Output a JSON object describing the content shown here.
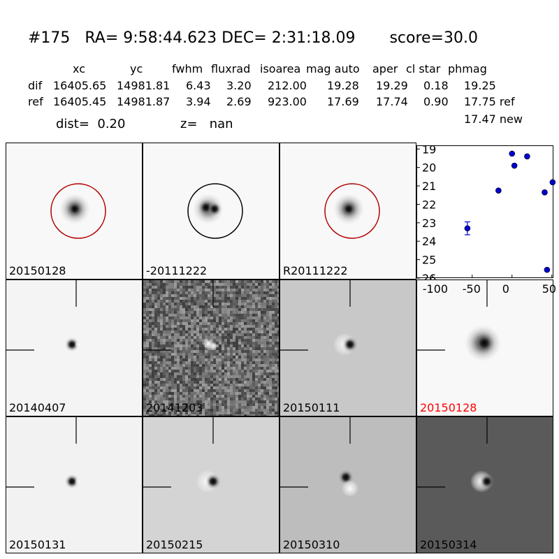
{
  "header": {
    "title": "#175   RA= 9:58:44.623 DEC= 2:31:18.09       score=30.0",
    "columns": [
      "xc",
      "yc",
      "fwhm",
      "fluxrad",
      "isoarea",
      "mag auto",
      "aper",
      "cl star",
      "phmag"
    ],
    "rows": [
      {
        "name": "dif",
        "values": [
          "16405.65",
          "14981.81",
          "6.43",
          "3.20",
          "212.00",
          "19.28",
          "19.29",
          "0.18",
          "19.25"
        ]
      },
      {
        "name": "ref",
        "values": [
          "16405.45",
          "14981.87",
          "3.94",
          "2.69",
          "923.00",
          "17.69",
          "17.74",
          "0.90",
          "17.75 ref"
        ]
      }
    ],
    "phmag_new": "17.47 new",
    "dist": "dist=  0.20",
    "z": "z=   nan"
  },
  "panels": [
    {
      "label": "20150128",
      "bg": "#f8f8f8",
      "circle": "#b00000",
      "blob": "normal"
    },
    {
      "label": "-20111222",
      "bg": "#f8f8f8",
      "circle": "#000000",
      "blob": "double"
    },
    {
      "label": "R20111222",
      "bg": "#f8f8f8",
      "circle": "#b00000",
      "blob": "normal"
    },
    {
      "label": "20140407",
      "bg": "#f4f4f4",
      "blob": "small"
    },
    {
      "label": "20141203",
      "bg": "#6a6a6a",
      "blob": "noise"
    },
    {
      "label": "20150111",
      "bg": "#c8c8c8",
      "blob": "dipole"
    },
    {
      "label": "20150128",
      "bg": "#f8f8f8",
      "blob": "large",
      "label_color": "#ff0000"
    },
    {
      "label": "20150131",
      "bg": "#f2f2f2",
      "blob": "small"
    },
    {
      "label": "20150215",
      "bg": "#d4d4d4",
      "blob": "dipole"
    },
    {
      "label": "20150310",
      "bg": "#bdbdbd",
      "blob": "dipole2"
    },
    {
      "label": "20150314",
      "bg": "#5a5a5a",
      "blob": "dipole"
    }
  ],
  "chart_data": {
    "type": "scatter",
    "x_ticks": [
      -100,
      -50,
      0,
      50
    ],
    "y_ticks": [
      19,
      20,
      21,
      22,
      23,
      24,
      25,
      26
    ],
    "xlim": [
      -120,
      52
    ],
    "ylim": [
      26,
      18.8
    ],
    "y_inverted": true,
    "points": [
      {
        "x": -56,
        "y": 23.3,
        "err": 0.35
      },
      {
        "x": -17,
        "y": 21.25
      },
      {
        "x": 0,
        "y": 19.25
      },
      {
        "x": 3,
        "y": 19.9
      },
      {
        "x": 19,
        "y": 19.4
      },
      {
        "x": 41,
        "y": 21.35
      },
      {
        "x": 44,
        "y": 25.55
      },
      {
        "x": 51,
        "y": 20.8
      }
    ],
    "marker_color": "#0000cc"
  }
}
